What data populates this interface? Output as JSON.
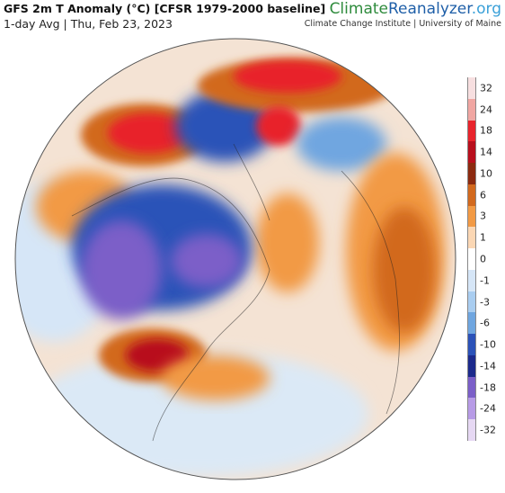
{
  "header": {
    "title": "GFS 2m T Anomaly (°C) [CFSR 1979-2000 baseline]",
    "subtitle": "1-day Avg | Thu, Feb 23, 2023"
  },
  "brand": {
    "name_part1": "Climate",
    "name_part2": "Reanalyzer",
    "name_part3": ".org",
    "institution": "Climate Change Institute | University of Maine",
    "colors": {
      "part1": "#2e8b3c",
      "part2": "#1f5fa8",
      "part3": "#3aa0d8"
    }
  },
  "colorbar": {
    "levels": [
      {
        "label": "32",
        "color": "#f7dfe0"
      },
      {
        "label": "24",
        "color": "#f0a6a2"
      },
      {
        "label": "18",
        "color": "#e8242c"
      },
      {
        "label": "14",
        "color": "#b80f1d"
      },
      {
        "label": "10",
        "color": "#8c2a10"
      },
      {
        "label": "6",
        "color": "#d2691e"
      },
      {
        "label": "3",
        "color": "#f29a45"
      },
      {
        "label": "1",
        "color": "#fbd7b4"
      },
      {
        "label": "0",
        "color": "#ffffff"
      },
      {
        "label": "-1",
        "color": "#d6e6f7"
      },
      {
        "label": "-3",
        "color": "#a9cdf0"
      },
      {
        "label": "-6",
        "color": "#6fa6e0"
      },
      {
        "label": "-10",
        "color": "#2b52b8"
      },
      {
        "label": "-14",
        "color": "#1c2a8c"
      },
      {
        "label": "-18",
        "color": "#7b5fc8"
      },
      {
        "label": "-24",
        "color": "#b79be6"
      },
      {
        "label": "-32",
        "color": "#e6d8f3"
      }
    ]
  },
  "map": {
    "ocean_base_color": "#f4e3d4",
    "regions": [
      "arctic-cold-anomaly",
      "north-america-cold-anomaly",
      "southeast-us-warm-anomaly",
      "alaska-warm-anomaly",
      "siberia-warm-anomaly",
      "europe-warm-anomaly",
      "atlantic-warm-anomaly"
    ]
  }
}
